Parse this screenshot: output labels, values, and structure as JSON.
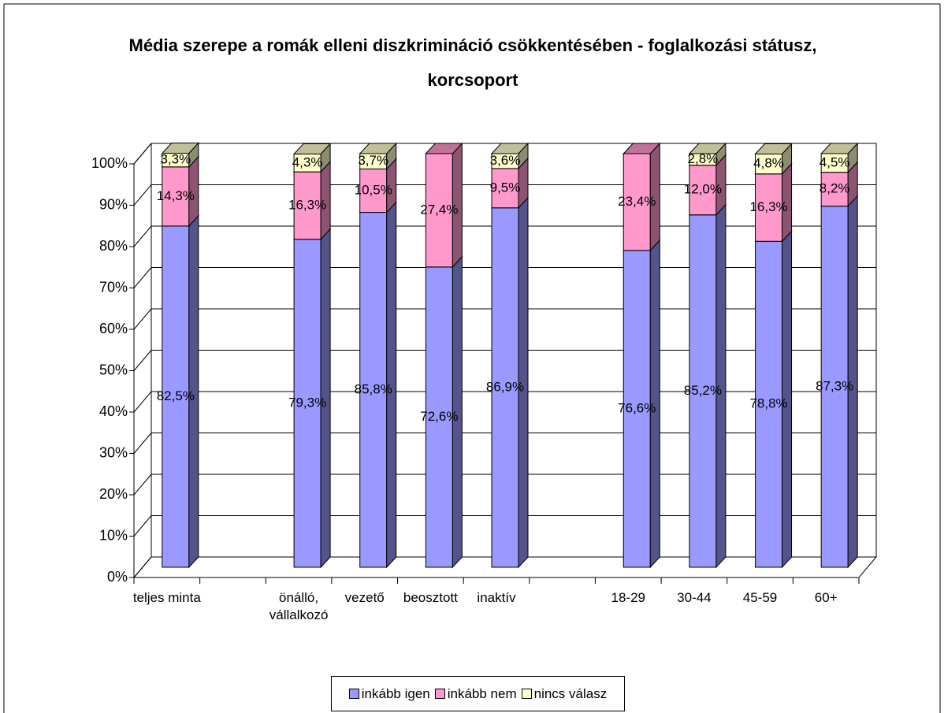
{
  "chart_data": {
    "type": "bar3d_stacked",
    "title": "Média szerepe a romák elleni diszkrimináció csökkentésében - foglalkozási státusz, korcsoport",
    "categories": [
      "teljes minta",
      null,
      "önálló, vállalkozó",
      "vezető",
      "beosztott",
      "inaktív",
      null,
      "18-29",
      "30-44",
      "45-59",
      "60+"
    ],
    "series": [
      {
        "name": "inkább igen",
        "color": "#9999ff",
        "values": [
          82.5,
          null,
          79.3,
          85.8,
          72.6,
          86.9,
          null,
          76.6,
          85.2,
          78.8,
          87.3
        ],
        "value_labels": [
          "82,5%",
          null,
          "79,3%",
          "85,8%",
          "72,6%",
          "86,9%",
          null,
          "76,6%",
          "85,2%",
          "78,8%",
          "87,3%"
        ]
      },
      {
        "name": "inkább nem",
        "color": "#ff99cc",
        "values": [
          14.3,
          null,
          16.3,
          10.5,
          27.4,
          9.5,
          null,
          23.4,
          12,
          16.3,
          8.2
        ],
        "value_labels": [
          "14,3%",
          null,
          "16,3%",
          "10,5%",
          "27,4%",
          "9,5%",
          null,
          "23,4%",
          "12,0%",
          "16,3%",
          "8,2%"
        ]
      },
      {
        "name": "nincs válasz",
        "color": "#ffffcc",
        "values": [
          3.3,
          null,
          4.3,
          3.7,
          null,
          3.6,
          null,
          null,
          2.8,
          4.8,
          4.5
        ],
        "value_labels": [
          "3,3%",
          null,
          "4,3%",
          "3,7%",
          null,
          "3,6%",
          null,
          null,
          "2,8%",
          "4,8%",
          "4,5%"
        ]
      }
    ],
    "ylim": [
      0,
      100
    ],
    "yticks": [
      {
        "value": 0,
        "label": "0%"
      },
      {
        "value": 10,
        "label": "10%"
      },
      {
        "value": 20,
        "label": "20%"
      },
      {
        "value": 30,
        "label": "30%"
      },
      {
        "value": 40,
        "label": "40%"
      },
      {
        "value": 50,
        "label": "50%"
      },
      {
        "value": 60,
        "label": "60%"
      },
      {
        "value": 70,
        "label": "70%"
      },
      {
        "value": 80,
        "label": "80%"
      },
      {
        "value": 90,
        "label": "90%"
      },
      {
        "value": 100,
        "label": "100%"
      }
    ],
    "grid": true,
    "legend": "bottom"
  }
}
